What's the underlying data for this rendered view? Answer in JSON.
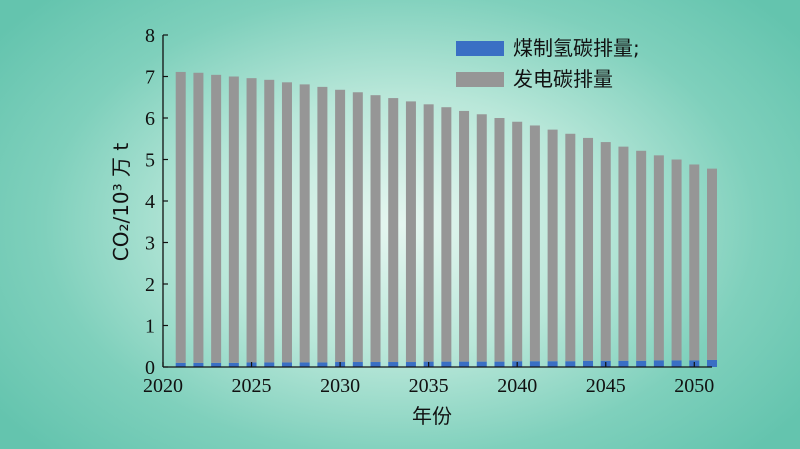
{
  "chart_data": {
    "type": "bar",
    "stacked": true,
    "x": [
      2021,
      2022,
      2023,
      2024,
      2025,
      2026,
      2027,
      2028,
      2029,
      2030,
      2031,
      2032,
      2033,
      2034,
      2035,
      2036,
      2037,
      2038,
      2039,
      2040,
      2041,
      2042,
      2043,
      2044,
      2045,
      2046,
      2047,
      2048,
      2049,
      2050,
      2051
    ],
    "series": [
      {
        "name": "煤制氢碳排量;",
        "color": "#3a6fc4",
        "values": [
          0.1,
          0.1,
          0.1,
          0.1,
          0.11,
          0.11,
          0.11,
          0.11,
          0.11,
          0.12,
          0.12,
          0.12,
          0.12,
          0.12,
          0.13,
          0.13,
          0.13,
          0.13,
          0.13,
          0.14,
          0.14,
          0.14,
          0.14,
          0.15,
          0.15,
          0.15,
          0.15,
          0.16,
          0.16,
          0.16,
          0.17
        ]
      },
      {
        "name": "发电碳排量",
        "color": "#969696",
        "values": [
          7.01,
          6.99,
          6.94,
          6.9,
          6.85,
          6.81,
          6.75,
          6.7,
          6.64,
          6.56,
          6.5,
          6.43,
          6.36,
          6.28,
          6.2,
          6.13,
          6.04,
          5.96,
          5.87,
          5.77,
          5.68,
          5.58,
          5.48,
          5.37,
          5.27,
          5.16,
          5.06,
          4.94,
          4.84,
          4.72,
          4.61
        ]
      }
    ],
    "xlabel": "年份",
    "ylabel": "CO₂/10³ 万 t",
    "ylim": [
      0,
      8
    ],
    "xlim": [
      2020,
      2051
    ],
    "xticks": [
      2020,
      2025,
      2030,
      2035,
      2040,
      2045,
      2050
    ],
    "yticks": [
      0,
      1,
      2,
      3,
      4,
      5,
      6,
      7,
      8
    ],
    "legend_position": "top-right",
    "grid": false
  }
}
